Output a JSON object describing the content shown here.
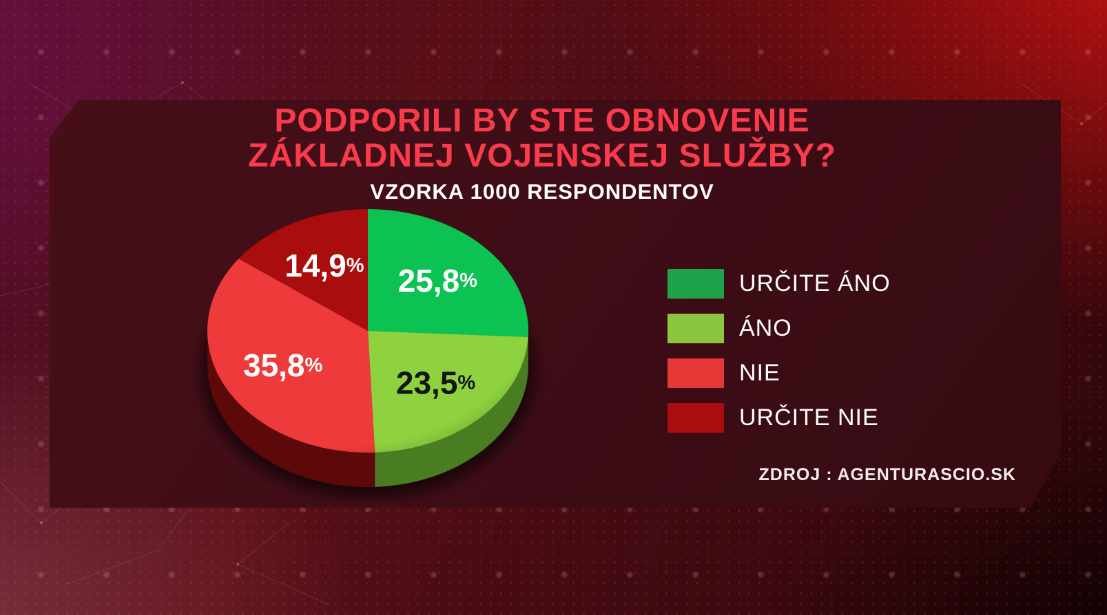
{
  "header": {
    "title_line1": "PODPORILI BY STE OBNOVENIE",
    "title_line2": "ZÁKLADNEJ VOJENSKEJ SLUŽBY?",
    "subtitle": "VZORKA 1000 RESPONDENTOV"
  },
  "source": {
    "label": "ZDROJ : AGENTURASCIO.SK"
  },
  "colors": {
    "title": "#f93b4c",
    "subtitle": "#ffffff",
    "source": "#f3ecec",
    "panel": "#3f0d17",
    "background_accent_red": "#a01212"
  },
  "chart_data": {
    "type": "pie",
    "title": "PODPORILI BY STE OBNOVENIE ZÁKLADNEJ VOJENSKEJ SLUŽBY?",
    "subtitle": "VZORKA 1000 RESPONDENTOV",
    "sample_size": 1000,
    "effect": "3d",
    "start_angle_deg": 0,
    "direction": "clockwise",
    "percent_symbol": "%",
    "legend_position": "right",
    "slices": [
      {
        "label": "URČITE ÁNO",
        "value": 25.8,
        "display": "25,8",
        "color": "#0cc253",
        "side_color": "#0a7a33",
        "label_color": "#ffffff",
        "legend_color": "#1ea34b"
      },
      {
        "label": "ÁNO",
        "value": 23.5,
        "display": "23,5",
        "color": "#8ed33f",
        "side_color": "#4a7d22",
        "label_color": "#141414",
        "legend_color": "#8cc63e"
      },
      {
        "label": "NIE",
        "value": 35.8,
        "display": "35,8",
        "color": "#ee3a3b",
        "side_color": "#5d0909",
        "label_color": "#ffffff",
        "legend_color": "#e73737"
      },
      {
        "label": "URČITE NIE",
        "value": 14.9,
        "display": "14,9",
        "color": "#a90d0d",
        "side_color": "#550707",
        "label_color": "#ffffff",
        "legend_color": "#aa0d0d"
      }
    ]
  }
}
